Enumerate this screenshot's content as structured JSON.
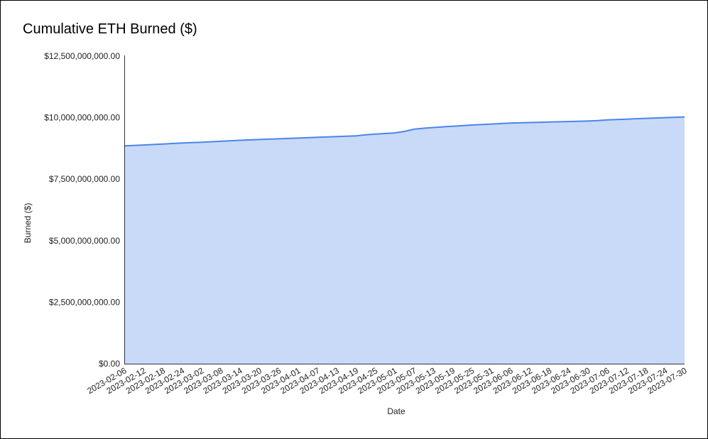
{
  "chart_data": {
    "type": "area",
    "title": "Cumulative ETH Burned ($)",
    "xlabel": "Date",
    "ylabel": "Burned ($)",
    "ylim": [
      0,
      12500000000
    ],
    "y_ticks": [
      0,
      2500000000,
      5000000000,
      7500000000,
      10000000000,
      12500000000
    ],
    "y_tick_labels": [
      "$0.00",
      "$2,500,000,000.00",
      "$5,000,000,000.00",
      "$7,500,000,000.00",
      "$10,000,000,000.00",
      "$12,500,000,000.00"
    ],
    "x_tick_labels": [
      "2023-02-06",
      "2023-02-12",
      "2023-02-18",
      "2023-02-24",
      "2023-03-02",
      "2023-03-08",
      "2023-03-14",
      "2023-03-20",
      "2023-03-26",
      "2023-04-01",
      "2023-04-07",
      "2023-04-13",
      "2023-04-19",
      "2023-04-25",
      "2023-05-01",
      "2023-05-07",
      "2023-05-13",
      "2023-05-19",
      "2023-05-25",
      "2023-05-31",
      "2023-06-06",
      "2023-06-12",
      "2023-06-18",
      "2023-06-24",
      "2023-06-30",
      "2023-07-06",
      "2023-07-12",
      "2023-07-18",
      "2023-07-24",
      "2023-07-30"
    ],
    "grid": false,
    "legend": "none",
    "colors": {
      "line": "#4a86e8",
      "fill": "#c9daf8"
    },
    "series": [
      {
        "x": [
          "2023-02-06",
          "2023-02-12",
          "2023-02-18",
          "2023-02-24",
          "2023-03-02",
          "2023-03-08",
          "2023-03-14",
          "2023-03-20",
          "2023-03-26",
          "2023-04-01",
          "2023-04-07",
          "2023-04-13",
          "2023-04-19",
          "2023-04-22",
          "2023-04-25",
          "2023-05-01",
          "2023-05-04",
          "2023-05-07",
          "2023-05-10",
          "2023-05-13",
          "2023-05-19",
          "2023-05-25",
          "2023-05-31",
          "2023-06-06",
          "2023-06-12",
          "2023-06-18",
          "2023-06-24",
          "2023-06-30",
          "2023-07-03",
          "2023-07-06",
          "2023-07-12",
          "2023-07-18",
          "2023-07-24",
          "2023-07-30"
        ],
        "values": [
          8850000000,
          8890000000,
          8930000000,
          8970000000,
          9000000000,
          9040000000,
          9080000000,
          9110000000,
          9140000000,
          9170000000,
          9200000000,
          9230000000,
          9260000000,
          9300000000,
          9330000000,
          9380000000,
          9440000000,
          9530000000,
          9570000000,
          9600000000,
          9650000000,
          9700000000,
          9740000000,
          9780000000,
          9800000000,
          9820000000,
          9840000000,
          9860000000,
          9880000000,
          9910000000,
          9940000000,
          9970000000,
          10000000000,
          10030000000
        ]
      }
    ]
  }
}
